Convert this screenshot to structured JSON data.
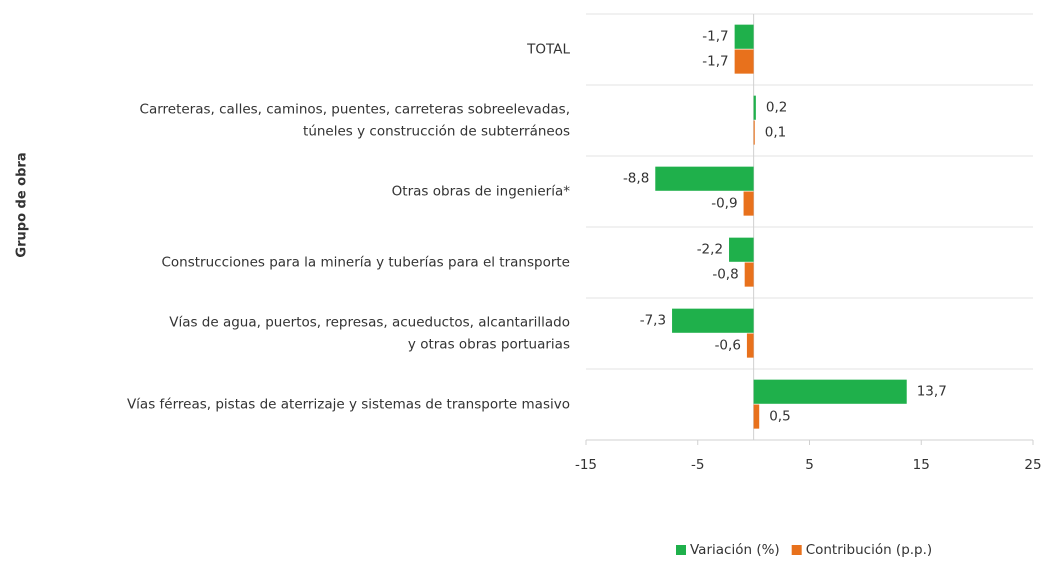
{
  "chart_data": {
    "type": "hbar",
    "y_label": "Grupo de obra",
    "categories": [
      [
        "TOTAL"
      ],
      [
        "Carreteras, calles, caminos, puentes, carreteras sobreelevadas,",
        "túneles y construcción de subterráneos"
      ],
      [
        "Otras obras de ingeniería*"
      ],
      [
        "Construcciones para la minería y tuberías para el transporte"
      ],
      [
        "Vías de agua, puertos, represas, acueductos, alcantarillado",
        "y otras obras portuarias"
      ],
      [
        "Vías férreas, pistas de aterrizaje y sistemas de transporte masivo"
      ]
    ],
    "series": [
      {
        "name": "Variación (%)",
        "color": "#1fb04b",
        "values": [
          -1.7,
          0.2,
          -8.8,
          -2.2,
          -7.3,
          13.7
        ],
        "value_labels": [
          "-1,7",
          "0,2",
          "-8,8",
          "-2,2",
          "-7,3",
          "13,7"
        ]
      },
      {
        "name": "Contribución (p.p.)",
        "color": "#e8711c",
        "values": [
          -1.7,
          0.1,
          -0.9,
          -0.8,
          -0.6,
          0.5
        ],
        "value_labels": [
          "-1,7",
          "0,1",
          "-0,9",
          "-0,8",
          "-0,6",
          "0,5"
        ]
      }
    ],
    "xlim": [
      -15,
      25
    ],
    "xticks": [
      -15,
      -5,
      5,
      15,
      25
    ],
    "legend": "bottom"
  }
}
